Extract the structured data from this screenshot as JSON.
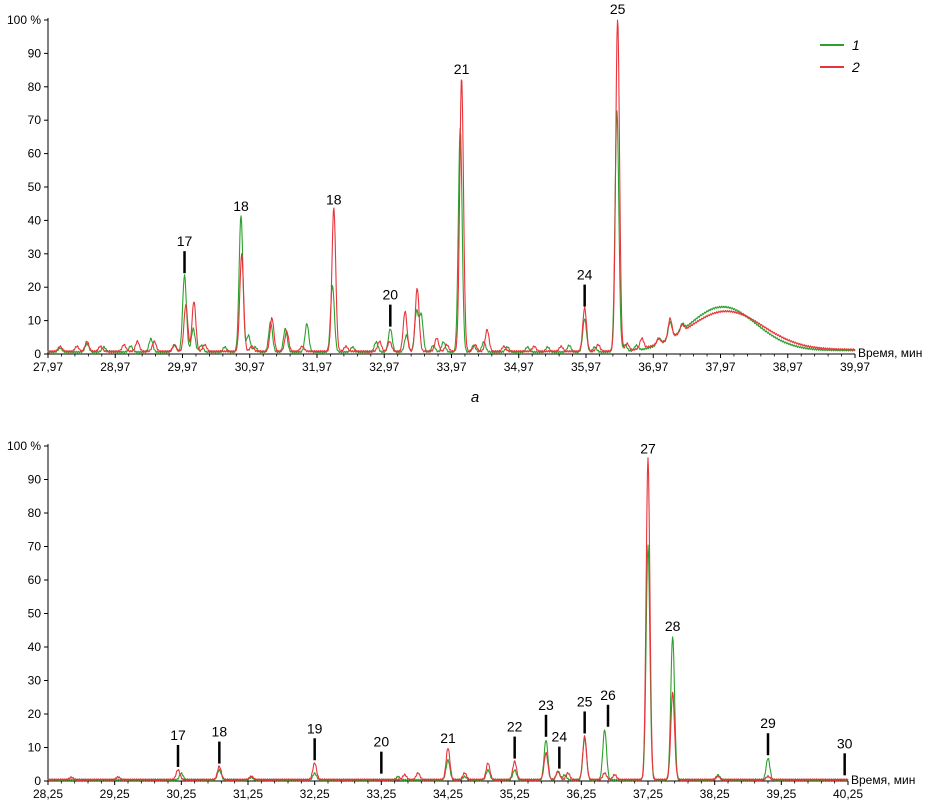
{
  "chart_data": [
    {
      "type": "line",
      "caption": "а",
      "xlabel": "Время, мин",
      "ylabel": "",
      "y_unit_label": "100 %",
      "xlim": [
        27.97,
        39.97
      ],
      "ylim": [
        0,
        100
      ],
      "xticks": [
        27.97,
        28.97,
        29.97,
        30.97,
        31.97,
        32.97,
        33.97,
        34.97,
        35.97,
        36.97,
        37.97,
        38.97,
        39.97
      ],
      "xtick_labels": [
        "27,97",
        "28,97",
        "29,97",
        "30,97",
        "31,97",
        "32,97",
        "33,97",
        "34,97",
        "35,97",
        "36,97",
        "37,97",
        "38,97",
        "39,97"
      ],
      "yticks": [
        0,
        10,
        20,
        30,
        40,
        50,
        60,
        70,
        80,
        90,
        100
      ],
      "ytick_labels": [
        "0",
        "10",
        "20",
        "30",
        "40",
        "50",
        "60",
        "70",
        "80",
        "90",
        "100 %"
      ],
      "legend": {
        "placement": "top-right",
        "entries": [
          {
            "label": "1",
            "color": "#2ca02c"
          },
          {
            "label": "2",
            "color": "#e8343a"
          }
        ]
      },
      "series": [
        {
          "name": "1",
          "color": "#2ca02c",
          "baseline": 0.6,
          "peaks": [
            [
              28.15,
              1.2
            ],
            [
              28.55,
              2.5
            ],
            [
              28.8,
              1.5
            ],
            [
              29.2,
              1.8
            ],
            [
              29.5,
              4
            ],
            [
              29.85,
              2
            ],
            [
              30.0,
              23
            ],
            [
              30.13,
              7
            ],
            [
              30.25,
              2
            ],
            [
              30.6,
              1.5
            ],
            [
              30.84,
              41
            ],
            [
              30.95,
              5
            ],
            [
              31.05,
              1.5
            ],
            [
              31.28,
              9
            ],
            [
              31.5,
              7
            ],
            [
              31.82,
              8.5
            ],
            [
              32.2,
              20
            ],
            [
              32.5,
              1.5
            ],
            [
              32.85,
              3
            ],
            [
              33.06,
              7
            ],
            [
              33.3,
              5
            ],
            [
              33.45,
              12
            ],
            [
              33.52,
              11
            ],
            [
              33.7,
              2
            ],
            [
              33.85,
              3
            ],
            [
              34.1,
              67
            ],
            [
              34.3,
              2
            ],
            [
              34.45,
              3
            ],
            [
              34.8,
              1.5
            ],
            [
              35.1,
              1.5
            ],
            [
              35.4,
              1.5
            ],
            [
              35.72,
              2
            ],
            [
              35.95,
              10
            ],
            [
              36.1,
              1.5
            ],
            [
              36.43,
              72
            ],
            [
              36.55,
              2
            ],
            [
              36.72,
              1.5
            ],
            [
              37.05,
              2
            ],
            [
              37.22,
              5
            ],
            [
              37.4,
              2
            ]
          ],
          "hump": {
            "center": 38.0,
            "height": 13.5,
            "width": 0.5,
            "floor": 0.5
          }
        },
        {
          "name": "2",
          "color": "#e8343a",
          "baseline": 0.8,
          "peaks": [
            [
              28.15,
              1.5
            ],
            [
              28.4,
              1.5
            ],
            [
              28.55,
              3
            ],
            [
              28.75,
              1.5
            ],
            [
              29.1,
              2
            ],
            [
              29.3,
              3
            ],
            [
              29.55,
              3
            ],
            [
              29.85,
              2
            ],
            [
              30.02,
              14
            ],
            [
              30.14,
              15
            ],
            [
              30.3,
              2
            ],
            [
              30.85,
              29
            ],
            [
              31.0,
              1.5
            ],
            [
              31.3,
              10
            ],
            [
              31.52,
              6
            ],
            [
              31.75,
              1.5
            ],
            [
              32.22,
              43
            ],
            [
              32.4,
              1.5
            ],
            [
              32.9,
              3
            ],
            [
              33.05,
              3
            ],
            [
              33.28,
              12
            ],
            [
              33.46,
              19
            ],
            [
              33.75,
              4
            ],
            [
              33.9,
              2
            ],
            [
              34.12,
              82
            ],
            [
              34.32,
              2
            ],
            [
              34.5,
              6.5
            ],
            [
              34.75,
              1.5
            ],
            [
              35.2,
              1.5
            ],
            [
              35.6,
              1.5
            ],
            [
              35.95,
              13
            ],
            [
              36.15,
              2
            ],
            [
              36.44,
              100
            ],
            [
              36.58,
              2
            ],
            [
              36.8,
              3
            ],
            [
              37.05,
              1.5
            ],
            [
              37.22,
              6
            ],
            [
              37.4,
              2
            ]
          ],
          "hump": {
            "center": 38.05,
            "height": 12,
            "width": 0.55,
            "floor": 0.5
          }
        }
      ],
      "annotations": [
        {
          "label": "17",
          "x": 30.0,
          "y": 23,
          "marker": true
        },
        {
          "label": "18",
          "x": 30.84,
          "y": 41,
          "marker": false
        },
        {
          "label": "18",
          "x": 32.22,
          "y": 43,
          "marker": false
        },
        {
          "label": "20",
          "x": 33.06,
          "y": 7,
          "marker": true
        },
        {
          "label": "21",
          "x": 34.12,
          "y": 82,
          "marker": false
        },
        {
          "label": "24",
          "x": 35.95,
          "y": 13,
          "marker": true
        },
        {
          "label": "25",
          "x": 36.44,
          "y": 100,
          "marker": false
        }
      ]
    },
    {
      "type": "line",
      "xlabel": "Время, мин",
      "ylabel": "",
      "y_unit_label": "100 %",
      "xlim": [
        28.25,
        40.25
      ],
      "ylim": [
        0,
        100
      ],
      "xticks": [
        28.25,
        29.25,
        30.25,
        31.25,
        32.25,
        33.25,
        34.25,
        35.25,
        36.25,
        37.25,
        38.25,
        39.25,
        40.25
      ],
      "xtick_labels": [
        "28,25",
        "29,25",
        "30,25",
        "31,25",
        "32,25",
        "33,25",
        "34,25",
        "35,25",
        "36,25",
        "37,25",
        "38,25",
        "39,25",
        "40,25"
      ],
      "yticks": [
        0,
        10,
        20,
        30,
        40,
        50,
        60,
        70,
        80,
        90,
        100
      ],
      "ytick_labels": [
        "0",
        "10",
        "20",
        "30",
        "40",
        "50",
        "60",
        "70",
        "80",
        "90",
        "100 %"
      ],
      "series": [
        {
          "name": "1",
          "color": "#2ca02c",
          "baseline": 0.3,
          "peaks": [
            [
              30.25,
              2
            ],
            [
              30.82,
              3
            ],
            [
              31.3,
              0.8
            ],
            [
              32.25,
              2
            ],
            [
              33.5,
              1
            ],
            [
              34.25,
              6
            ],
            [
              34.5,
              1
            ],
            [
              34.85,
              3
            ],
            [
              35.25,
              3
            ],
            [
              35.72,
              12
            ],
            [
              35.9,
              2.5
            ],
            [
              36.0,
              1.5
            ],
            [
              36.3,
              12.5
            ],
            [
              36.6,
              15
            ],
            [
              37.25,
              70
            ],
            [
              37.62,
              43
            ],
            [
              38.3,
              1.5
            ],
            [
              39.05,
              6.5
            ]
          ]
        },
        {
          "name": "2",
          "color": "#e8343a",
          "baseline": 0.4,
          "peaks": [
            [
              28.6,
              0.7
            ],
            [
              29.3,
              0.8
            ],
            [
              30.2,
              3
            ],
            [
              30.82,
              4
            ],
            [
              31.3,
              1
            ],
            [
              32.25,
              5
            ],
            [
              33.6,
              1.5
            ],
            [
              33.8,
              2
            ],
            [
              34.25,
              9.5
            ],
            [
              34.5,
              2
            ],
            [
              34.85,
              5
            ],
            [
              35.25,
              5.5
            ],
            [
              35.72,
              8
            ],
            [
              35.9,
              2.5
            ],
            [
              36.05,
              2
            ],
            [
              36.3,
              13
            ],
            [
              36.6,
              2
            ],
            [
              36.75,
              1.5
            ],
            [
              37.25,
              96
            ],
            [
              37.62,
              26
            ],
            [
              38.3,
              1
            ],
            [
              39.05,
              1
            ]
          ]
        }
      ],
      "annotations": [
        {
          "label": "17",
          "x": 30.2,
          "y": 3,
          "marker": true
        },
        {
          "label": "18",
          "x": 30.82,
          "y": 4,
          "marker": true
        },
        {
          "label": "19",
          "x": 32.25,
          "y": 5,
          "marker": true
        },
        {
          "label": "20",
          "x": 33.25,
          "y": 1,
          "marker": true
        },
        {
          "label": "21",
          "x": 34.25,
          "y": 9.5,
          "marker": false
        },
        {
          "label": "22",
          "x": 35.25,
          "y": 5.5,
          "marker": true
        },
        {
          "label": "23",
          "x": 35.72,
          "y": 12,
          "marker": true
        },
        {
          "label": "24",
          "x": 35.92,
          "y": 2.5,
          "marker": true
        },
        {
          "label": "25",
          "x": 36.3,
          "y": 13,
          "marker": true
        },
        {
          "label": "26",
          "x": 36.65,
          "y": 15,
          "marker": true
        },
        {
          "label": "27",
          "x": 37.25,
          "y": 96,
          "marker": false
        },
        {
          "label": "28",
          "x": 37.62,
          "y": 43,
          "marker": false
        },
        {
          "label": "29",
          "x": 39.05,
          "y": 6.5,
          "marker": true
        },
        {
          "label": "30",
          "x": 40.2,
          "y": 0.5,
          "marker": true
        }
      ]
    }
  ]
}
